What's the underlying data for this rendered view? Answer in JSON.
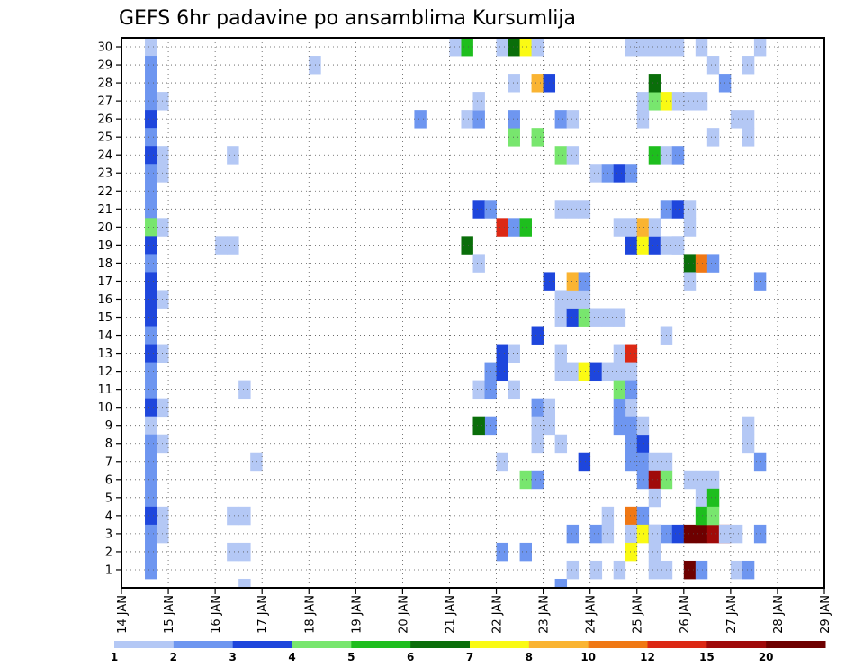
{
  "chart_data": {
    "type": "heatmap",
    "title": "GEFS 6hr padavine po ansamblima Kursumlija",
    "xlabel": "",
    "ylabel": "",
    "x_ticks": [
      "14 JAN",
      "15 JAN",
      "16 JAN",
      "17 JAN",
      "18 JAN",
      "19 JAN",
      "20 JAN",
      "21 JAN",
      "22 JAN",
      "23 JAN",
      "24 JAN",
      "25 JAN",
      "26 JAN",
      "27 JAN",
      "28 JAN",
      "29 JAN"
    ],
    "y_ticks": [
      "1",
      "2",
      "3",
      "4",
      "5",
      "6",
      "7",
      "8",
      "9",
      "10",
      "11",
      "12",
      "13",
      "14",
      "15",
      "16",
      "17",
      "18",
      "19",
      "20",
      "21",
      "22",
      "23",
      "24",
      "25",
      "26",
      "27",
      "28",
      "29",
      "30"
    ],
    "x_unit": "6-hour step from 14 JAN",
    "ylim": [
      0,
      30
    ],
    "grid": true,
    "colorbar": {
      "labels": [
        "1",
        "2",
        "3",
        "4",
        "5",
        "6",
        "7",
        "8",
        "10",
        "12",
        "15",
        "20"
      ],
      "colors": [
        "#b4c8f5",
        "#6e96f0",
        "#1e46dc",
        "#78e66e",
        "#1ebe1e",
        "#0a6e0a",
        "#fafa14",
        "#fab432",
        "#f07814",
        "#dc2814",
        "#a00a0a",
        "#6e0000"
      ]
    },
    "cells": [
      [
        2,
        30,
        0
      ],
      [
        2,
        29,
        1
      ],
      [
        2,
        28,
        1
      ],
      [
        2,
        27,
        1
      ],
      [
        3,
        27,
        0
      ],
      [
        2,
        26,
        2
      ],
      [
        2,
        25,
        1
      ],
      [
        2,
        24,
        2
      ],
      [
        3,
        24,
        0
      ],
      [
        2,
        23,
        1
      ],
      [
        3,
        23,
        0
      ],
      [
        2,
        22,
        1
      ],
      [
        2,
        21,
        1
      ],
      [
        2,
        20,
        3
      ],
      [
        3,
        20,
        0
      ],
      [
        2,
        19,
        2
      ],
      [
        2,
        18,
        1
      ],
      [
        2,
        17,
        2
      ],
      [
        2,
        16,
        2
      ],
      [
        3,
        16,
        0
      ],
      [
        2,
        15,
        2
      ],
      [
        2,
        14,
        1
      ],
      [
        2,
        13,
        2
      ],
      [
        3,
        13,
        0
      ],
      [
        2,
        12,
        1
      ],
      [
        2,
        11,
        1
      ],
      [
        2,
        10,
        2
      ],
      [
        3,
        10,
        0
      ],
      [
        2,
        9,
        0
      ],
      [
        2,
        8,
        1
      ],
      [
        3,
        8,
        0
      ],
      [
        2,
        7,
        1
      ],
      [
        2,
        6,
        1
      ],
      [
        2,
        5,
        1
      ],
      [
        2,
        4,
        2
      ],
      [
        3,
        4,
        0
      ],
      [
        2,
        3,
        1
      ],
      [
        3,
        3,
        0
      ],
      [
        2,
        2,
        1
      ],
      [
        2,
        1,
        1
      ],
      [
        9,
        24,
        0
      ],
      [
        8,
        19,
        0
      ],
      [
        9,
        19,
        0
      ],
      [
        9,
        4,
        0
      ],
      [
        10,
        4,
        0
      ],
      [
        9,
        2,
        0
      ],
      [
        10,
        2,
        0
      ],
      [
        10,
        11,
        0
      ],
      [
        10,
        0,
        0
      ],
      [
        11,
        7,
        0
      ],
      [
        16,
        29,
        0
      ],
      [
        28,
        30,
        0
      ],
      [
        29,
        30,
        4
      ],
      [
        25,
        26,
        1
      ],
      [
        29,
        26,
        0
      ],
      [
        30,
        26,
        1
      ],
      [
        30,
        27,
        0
      ],
      [
        30,
        21,
        2
      ],
      [
        31,
        21,
        1
      ],
      [
        29,
        19,
        5
      ],
      [
        30,
        18,
        0
      ],
      [
        32,
        20,
        9
      ],
      [
        33,
        20,
        1
      ],
      [
        34,
        20,
        4
      ],
      [
        33,
        28,
        0
      ],
      [
        35,
        28,
        7
      ],
      [
        36,
        28,
        2
      ],
      [
        32,
        30,
        0
      ],
      [
        33,
        30,
        5
      ],
      [
        34,
        30,
        6
      ],
      [
        35,
        30,
        0
      ],
      [
        33,
        25,
        3
      ],
      [
        35,
        25,
        3
      ],
      [
        33,
        26,
        1
      ],
      [
        31,
        12,
        1
      ],
      [
        32,
        12,
        2
      ],
      [
        32,
        13,
        2
      ],
      [
        30,
        11,
        0
      ],
      [
        31,
        11,
        1
      ],
      [
        33,
        13,
        0
      ],
      [
        33,
        11,
        0
      ],
      [
        32,
        7,
        0
      ],
      [
        34,
        6,
        3
      ],
      [
        35,
        6,
        1
      ],
      [
        31,
        9,
        1
      ],
      [
        30,
        9,
        5
      ],
      [
        32,
        2,
        1
      ],
      [
        34,
        2,
        1
      ],
      [
        35,
        10,
        1
      ],
      [
        36,
        10,
        0
      ],
      [
        35,
        9,
        0
      ],
      [
        36,
        9,
        0
      ],
      [
        35,
        8,
        0
      ],
      [
        37,
        8,
        0
      ],
      [
        35,
        14,
        2
      ],
      [
        36,
        17,
        2
      ],
      [
        37,
        13,
        0
      ],
      [
        37,
        0,
        1
      ],
      [
        37,
        16,
        0
      ],
      [
        37,
        26,
        1
      ],
      [
        38,
        26,
        0
      ],
      [
        37,
        24,
        3
      ],
      [
        38,
        24,
        0
      ],
      [
        37,
        21,
        0
      ],
      [
        38,
        21,
        0
      ],
      [
        39,
        21,
        0
      ],
      [
        37,
        15,
        0
      ],
      [
        38,
        15,
        2
      ],
      [
        39,
        15,
        3
      ],
      [
        40,
        15,
        0
      ],
      [
        41,
        15,
        0
      ],
      [
        42,
        15,
        0
      ],
      [
        38,
        16,
        0
      ],
      [
        39,
        16,
        0
      ],
      [
        37,
        12,
        0
      ],
      [
        38,
        12,
        0
      ],
      [
        39,
        12,
        6
      ],
      [
        40,
        12,
        2
      ],
      [
        41,
        12,
        0
      ],
      [
        38,
        17,
        7
      ],
      [
        39,
        17,
        1
      ],
      [
        38,
        1,
        0
      ],
      [
        40,
        1,
        0
      ],
      [
        38,
        3,
        1
      ],
      [
        39,
        7,
        2
      ],
      [
        40,
        23,
        0
      ],
      [
        41,
        23,
        1
      ],
      [
        42,
        23,
        2
      ],
      [
        43,
        23,
        1
      ],
      [
        43,
        19,
        2
      ],
      [
        44,
        19,
        6
      ],
      [
        45,
        19,
        2
      ],
      [
        46,
        19,
        0
      ],
      [
        47,
        19,
        0
      ],
      [
        42,
        20,
        0
      ],
      [
        43,
        20,
        0
      ],
      [
        44,
        20,
        7
      ],
      [
        45,
        20,
        0
      ],
      [
        44,
        27,
        0
      ],
      [
        45,
        27,
        3
      ],
      [
        46,
        27,
        6
      ],
      [
        47,
        27,
        0
      ],
      [
        48,
        27,
        0
      ],
      [
        49,
        27,
        0
      ],
      [
        45,
        28,
        5
      ],
      [
        44,
        26,
        0
      ],
      [
        45,
        24,
        4
      ],
      [
        46,
        24,
        0
      ],
      [
        47,
        24,
        1
      ],
      [
        46,
        21,
        1
      ],
      [
        47,
        21,
        2
      ],
      [
        48,
        21,
        0
      ],
      [
        47,
        19,
        0
      ],
      [
        48,
        18,
        5
      ],
      [
        49,
        18,
        8
      ],
      [
        48,
        17,
        0
      ],
      [
        50,
        18,
        1
      ],
      [
        42,
        13,
        0
      ],
      [
        43,
        13,
        9
      ],
      [
        42,
        12,
        0
      ],
      [
        43,
        12,
        0
      ],
      [
        43,
        10,
        0
      ],
      [
        43,
        9,
        1
      ],
      [
        43,
        8,
        1
      ],
      [
        44,
        8,
        2
      ],
      [
        43,
        7,
        1
      ],
      [
        44,
        7,
        1
      ],
      [
        45,
        7,
        0
      ],
      [
        46,
        7,
        0
      ],
      [
        44,
        6,
        1
      ],
      [
        45,
        6,
        10
      ],
      [
        46,
        6,
        3
      ],
      [
        45,
        5,
        0
      ],
      [
        43,
        4,
        8
      ],
      [
        44,
        4,
        1
      ],
      [
        43,
        3,
        0
      ],
      [
        44,
        3,
        6
      ],
      [
        45,
        3,
        2
      ],
      [
        46,
        3,
        1
      ],
      [
        47,
        3,
        2
      ],
      [
        48,
        3,
        11
      ],
      [
        49,
        3,
        11
      ],
      [
        50,
        3,
        10
      ],
      [
        51,
        3,
        10
      ],
      [
        45,
        2,
        0
      ],
      [
        48,
        6,
        0
      ],
      [
        49,
        6,
        0
      ],
      [
        50,
        6,
        0
      ],
      [
        49,
        5,
        0
      ],
      [
        50,
        5,
        4
      ],
      [
        49,
        4,
        4
      ],
      [
        50,
        4,
        3
      ],
      [
        51,
        3,
        0
      ],
      [
        52,
        3,
        0
      ],
      [
        44,
        9,
        0
      ],
      [
        45,
        3,
        0
      ],
      [
        41,
        4,
        0
      ],
      [
        48,
        1,
        11
      ],
      [
        49,
        1,
        1
      ],
      [
        45,
        1,
        0
      ],
      [
        46,
        1,
        0
      ],
      [
        42,
        1,
        0
      ],
      [
        43,
        2,
        6
      ],
      [
        40,
        3,
        1
      ],
      [
        41,
        3,
        0
      ],
      [
        42,
        9,
        1
      ],
      [
        42,
        10,
        1
      ],
      [
        43,
        11,
        0
      ],
      [
        42,
        11,
        3
      ],
      [
        43,
        11,
        1
      ],
      [
        46,
        14,
        0
      ],
      [
        48,
        20,
        0
      ],
      [
        50,
        29,
        0
      ],
      [
        51,
        28,
        1
      ],
      [
        53,
        29,
        0
      ],
      [
        52,
        26,
        0
      ],
      [
        53,
        26,
        0
      ],
      [
        54,
        30,
        0
      ],
      [
        54,
        17,
        1
      ],
      [
        54,
        7,
        1
      ],
      [
        54,
        3,
        1
      ],
      [
        53,
        9,
        0
      ],
      [
        53,
        8,
        0
      ],
      [
        53,
        25,
        0
      ],
      [
        52,
        1,
        0
      ],
      [
        53,
        1,
        1
      ],
      [
        47,
        30,
        0
      ],
      [
        44,
        30,
        0
      ],
      [
        45,
        30,
        0
      ],
      [
        46,
        30,
        0
      ],
      [
        43,
        30,
        0
      ],
      [
        49,
        30,
        0
      ],
      [
        50,
        25,
        0
      ]
    ]
  }
}
